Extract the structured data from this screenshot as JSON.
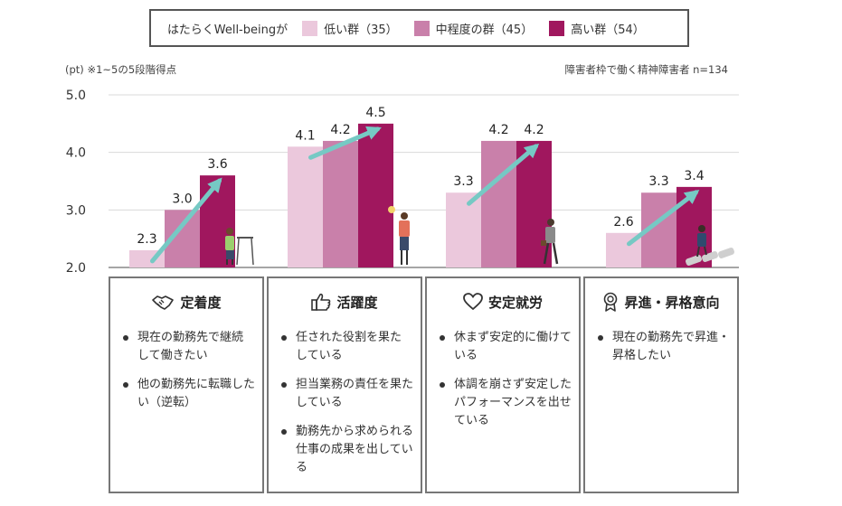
{
  "legend": {
    "title": "はたらくWell-beingが",
    "items": [
      {
        "label": "低い群（35）",
        "color": "#ebc8dc"
      },
      {
        "label": "中程度の群（45）",
        "color": "#c980aa"
      },
      {
        "label": "高い群（54）",
        "color": "#a0175e"
      }
    ]
  },
  "notes": {
    "unit": "(pt) ※1~5の5段階得点",
    "sample": "障害者枠で働く精神障害者 n=134"
  },
  "chart_data": {
    "type": "bar",
    "categories": [
      "定着度",
      "活躍度",
      "安定就労",
      "昇進・昇格意向"
    ],
    "series": [
      {
        "name": "低い群（35）",
        "values": [
          2.3,
          4.1,
          3.3,
          2.6
        ]
      },
      {
        "name": "中程度の群（45）",
        "values": [
          3.0,
          4.2,
          4.2,
          3.3
        ]
      },
      {
        "name": "高い群（54）",
        "values": [
          3.6,
          4.5,
          4.2,
          3.4
        ]
      }
    ],
    "y_ticks": [
      "5.0",
      "4.0",
      "3.0",
      "2.0"
    ],
    "ylim": [
      2.0,
      5.0
    ],
    "grid": true,
    "colors": [
      "#ebc8dc",
      "#c980aa",
      "#a0175e"
    ],
    "arrow_color": "#76c9c4"
  },
  "panels": [
    {
      "title": "定着度",
      "icon": "handshake-icon",
      "items": [
        "現在の勤務先で継続して働きたい",
        "他の勤務先に転職したい（逆転）"
      ]
    },
    {
      "title": "活躍度",
      "icon": "thumbs-up-icon",
      "items": [
        "任された役割を果たしている",
        "担当業務の責任を果たしている",
        "勤務先から求められる仕事の成果を出している"
      ]
    },
    {
      "title": "安定就労",
      "icon": "heart-icon",
      "items": [
        "休まず安定的に働けている",
        "体調を崩さず安定したパフォーマンスを出せている"
      ]
    },
    {
      "title": "昇進・昇格意向",
      "icon": "award-icon",
      "items": [
        "現在の勤務先で昇進・昇格したい"
      ]
    }
  ]
}
